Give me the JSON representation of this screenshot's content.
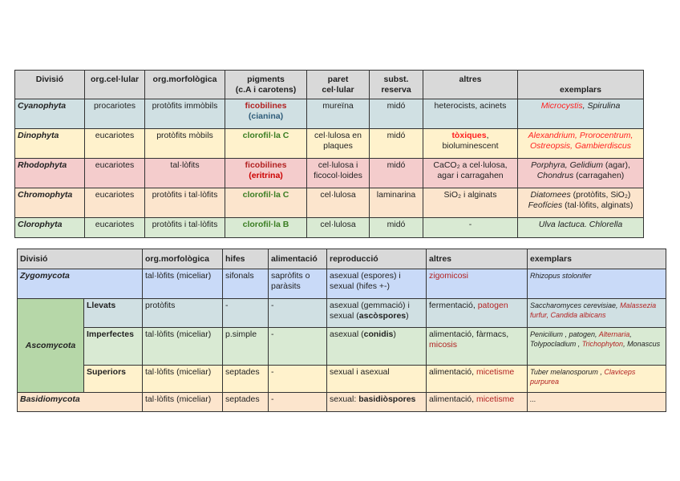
{
  "table1": {
    "headers": [
      [
        {
          "t": "Divisió"
        }
      ],
      [
        {
          "t": "org.cel·lular"
        }
      ],
      [
        {
          "t": "org.morfològica"
        }
      ],
      [
        {
          "t": "pigments"
        },
        {
          "br": true
        },
        {
          "t": "(c.A i carotens)"
        }
      ],
      [
        {
          "t": "paret"
        },
        {
          "br": true
        },
        {
          "t": "cel·lular"
        }
      ],
      [
        {
          "t": "subst."
        },
        {
          "br": true
        },
        {
          "t": "reserva"
        }
      ],
      [
        {
          "t": "altres"
        }
      ],
      [
        {
          "br": true
        },
        {
          "t": "exemplars"
        }
      ]
    ],
    "header_color": "#d9d9d9",
    "rows": [
      {
        "color": "#d0e0e3",
        "cells": [
          [
            {
              "t": "Cyanophyta"
            }
          ],
          [
            {
              "t": "procariotes"
            }
          ],
          [
            {
              "t": "protòfits immòbils"
            }
          ],
          [
            {
              "t": "ficobilines",
              "f": "b dr"
            },
            {
              "br": true
            },
            {
              "t": "(cianina)",
              "f": "b bl"
            }
          ],
          [
            {
              "t": "mureïna"
            }
          ],
          [
            {
              "t": "midó"
            }
          ],
          [
            {
              "t": "heterocists, acinets"
            }
          ],
          [
            {
              "t": "Microcystis",
              "f": "i rr"
            },
            {
              "t": ", Spirulina",
              "f": "i"
            }
          ]
        ]
      },
      {
        "color": "#fff2cc",
        "cells": [
          [
            {
              "t": "Dinophyta"
            }
          ],
          [
            {
              "t": "eucariotes"
            }
          ],
          [
            {
              "t": "protòfits mòbils"
            }
          ],
          [
            {
              "t": "clorofil·la C",
              "f": "b g"
            }
          ],
          [
            {
              "t": "cel·lulosa en plaques"
            }
          ],
          [
            {
              "t": "midó"
            }
          ],
          [
            {
              "t": "tòxiques",
              "f": "b rr"
            },
            {
              "t": ","
            },
            {
              "br": true
            },
            {
              "t": "bioluminescent"
            }
          ],
          [
            {
              "t": "Alexandrium, Prorocentrum, Ostreopsis, Gambierdiscus",
              "f": "i rr"
            }
          ]
        ]
      },
      {
        "color": "#f4cccc",
        "cells": [
          [
            {
              "t": "Rhodophyta"
            }
          ],
          [
            {
              "t": "eucariotes"
            }
          ],
          [
            {
              "t": "tal·lòfits"
            }
          ],
          [
            {
              "t": "ficobilines",
              "f": "b dr"
            },
            {
              "br": true
            },
            {
              "t": "(eritrina)",
              "f": "b r"
            }
          ],
          [
            {
              "t": "cel·lulosa i ficocol·loides"
            }
          ],
          [
            {
              "t": "midó"
            }
          ],
          [
            {
              "t": "CaCO₂ a cel·lulosa, agar i carragahen"
            }
          ],
          [
            {
              "t": "Porphyra, Gelidium",
              "f": "i"
            },
            {
              "t": " (agar),"
            },
            {
              "br": true
            },
            {
              "t": "Chondrus",
              "f": "i"
            },
            {
              "t": " (carragahen)"
            }
          ]
        ]
      },
      {
        "color": "#fce5cd",
        "cells": [
          [
            {
              "t": "Chromophyta"
            }
          ],
          [
            {
              "t": "eucariotes"
            }
          ],
          [
            {
              "t": "protòfits i tal·lòfits"
            }
          ],
          [
            {
              "t": "clorofil·la C",
              "f": "b g"
            }
          ],
          [
            {
              "t": "cel·lulosa"
            }
          ],
          [
            {
              "t": "laminarina"
            }
          ],
          [
            {
              "t": "SiO₂ i alginats"
            }
          ],
          [
            {
              "t": "Diatomees",
              "f": "i"
            },
            {
              "t": " (protòfits, SiO₂)"
            },
            {
              "br": true
            },
            {
              "t": "Feofícies",
              "f": "i"
            },
            {
              "t": " (tal·lòfits, alginats)"
            }
          ]
        ]
      },
      {
        "color": "#d9ead3",
        "cells": [
          [
            {
              "t": "Clorophyta"
            }
          ],
          [
            {
              "t": "eucariotes"
            }
          ],
          [
            {
              "t": "protòfits i tal·lòfits"
            }
          ],
          [
            {
              "t": "clorofil·la B",
              "f": "b g"
            }
          ],
          [
            {
              "t": "cel·lulosa"
            }
          ],
          [
            {
              "t": "midó"
            }
          ],
          [
            {
              "t": "-"
            }
          ],
          [
            {
              "t": "Ulva lactuca. Chlorella",
              "f": "i"
            }
          ]
        ]
      }
    ]
  },
  "table2": {
    "header_color": "#d9d9d9",
    "headers": [
      {
        "colspan": 2,
        "runs": [
          {
            "t": "Divisió"
          }
        ]
      },
      {
        "runs": [
          {
            "t": "org.morfològica"
          }
        ]
      },
      {
        "runs": [
          {
            "t": "hifes"
          }
        ]
      },
      {
        "runs": [
          {
            "t": "alimentació"
          }
        ]
      },
      {
        "runs": [
          {
            "t": "reproducció"
          }
        ]
      },
      {
        "runs": [
          {
            "t": "altres"
          }
        ]
      },
      {
        "runs": [
          {
            "t": "exemplars"
          }
        ]
      }
    ],
    "rows": [
      {
        "color": "#c9daf8",
        "cells": [
          {
            "cls": "first",
            "colspan": 2,
            "runs": [
              {
                "t": "Zygomycota"
              }
            ]
          },
          {
            "runs": [
              {
                "t": "tal·lòfits (miceliar)"
              }
            ]
          },
          {
            "runs": [
              {
                "t": "sifonals"
              }
            ]
          },
          {
            "runs": [
              {
                "t": "sapròfits o paràsits"
              }
            ]
          },
          {
            "runs": [
              {
                "t": "asexual (espores) i sexual (hifes +-)"
              }
            ]
          },
          {
            "runs": [
              {
                "t": "zigomicosi",
                "f": "dr"
              }
            ]
          },
          {
            "cls": "ex",
            "runs": [
              {
                "t": "Rhizopus stolonifer"
              }
            ]
          }
        ]
      },
      {
        "color": "#d0e0e3",
        "cells": [
          {
            "cls": "first mid",
            "rowspan": 3,
            "color": "#b6d7a8",
            "runs": [
              {
                "t": "Ascomycota"
              }
            ]
          },
          {
            "cls": "sub",
            "runs": [
              {
                "t": "Llevats"
              }
            ]
          },
          {
            "runs": [
              {
                "t": "protòfits"
              }
            ]
          },
          {
            "runs": [
              {
                "t": "-"
              }
            ]
          },
          {
            "runs": [
              {
                "t": "-"
              }
            ]
          },
          {
            "runs": [
              {
                "t": "asexual (gemmació) i sexual ("
              },
              {
                "t": "ascòspores",
                "f": "b"
              },
              {
                "t": ")"
              }
            ]
          },
          {
            "runs": [
              {
                "t": "fermentació, "
              },
              {
                "t": "patogen",
                "f": "dr"
              }
            ]
          },
          {
            "cls": "ex",
            "runs": [
              {
                "t": "Saccharomyces cerevisiae"
              },
              {
                "t": ", "
              },
              {
                "t": "Malassezia furfur, Candida albicans",
                "f": "dr"
              }
            ]
          }
        ]
      },
      {
        "color": "#d9ead3",
        "cells": [
          {
            "cls": "sub",
            "runs": [
              {
                "t": "Imperfectes"
              }
            ]
          },
          {
            "runs": [
              {
                "t": "tal·lòfits (miceliar)"
              }
            ]
          },
          {
            "runs": [
              {
                "t": "p.simple"
              }
            ]
          },
          {
            "runs": [
              {
                "t": "-"
              }
            ]
          },
          {
            "runs": [
              {
                "t": "asexual ("
              },
              {
                "t": "conidis",
                "f": "b"
              },
              {
                "t": ")"
              }
            ]
          },
          {
            "runs": [
              {
                "t": "alimentació, fàrmacs, "
              },
              {
                "t": "micosis",
                "f": "dr"
              }
            ]
          },
          {
            "cls": "ex",
            "runs": [
              {
                "t": "Penicilium , patogen, "
              },
              {
                "t": "Alternaria",
                "f": "dr"
              },
              {
                "t": ", Tolypocladium , "
              },
              {
                "t": "Trichophyton",
                "f": "dr"
              },
              {
                "t": ", Monascus"
              }
            ]
          }
        ]
      },
      {
        "color": "#fff2cc",
        "cells": [
          {
            "cls": "sub",
            "runs": [
              {
                "t": "Superiors"
              }
            ]
          },
          {
            "runs": [
              {
                "t": "tal·lòfits (miceliar)"
              }
            ]
          },
          {
            "runs": [
              {
                "t": "septades"
              }
            ]
          },
          {
            "runs": [
              {
                "t": "-"
              }
            ]
          },
          {
            "runs": [
              {
                "t": "sexual i asexual"
              }
            ]
          },
          {
            "runs": [
              {
                "t": "alimentació, "
              },
              {
                "t": "micetisme",
                "f": "dr"
              }
            ]
          },
          {
            "cls": "ex",
            "runs": [
              {
                "t": "Tuber melanosporum"
              },
              {
                "t": " , "
              },
              {
                "t": "Claviceps purpurea",
                "f": "dr"
              }
            ]
          }
        ]
      },
      {
        "color": "#fce5cd",
        "cells": [
          {
            "cls": "first",
            "colspan": 2,
            "runs": [
              {
                "t": "Basidiomycota"
              }
            ]
          },
          {
            "runs": [
              {
                "t": "tal·lòfits (miceliar)"
              }
            ]
          },
          {
            "runs": [
              {
                "t": "septades"
              }
            ]
          },
          {
            "runs": [
              {
                "t": "-"
              }
            ]
          },
          {
            "runs": [
              {
                "t": "sexual: "
              },
              {
                "t": "basidiòspores",
                "f": "b"
              }
            ]
          },
          {
            "runs": [
              {
                "t": "alimentació, "
              },
              {
                "t": "micetisme",
                "f": "dr"
              }
            ]
          },
          {
            "cls": "ex",
            "runs": [
              {
                "t": "..."
              }
            ]
          }
        ]
      }
    ]
  }
}
